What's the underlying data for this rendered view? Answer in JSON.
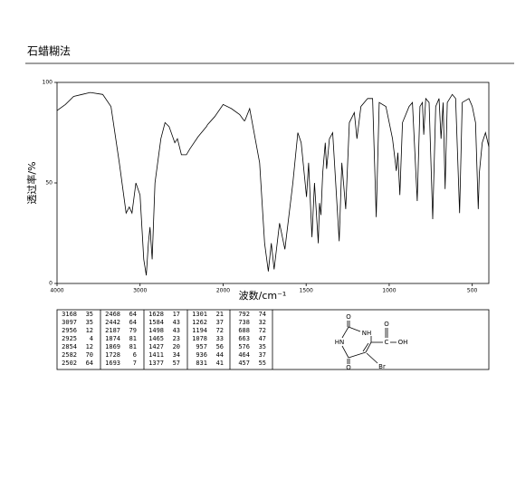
{
  "header": {
    "title": "石蜡糊法"
  },
  "chart_data": {
    "type": "line",
    "color": "#000000",
    "x_label": "波数/cm⁻¹",
    "y_label": "透过率/%",
    "xlim": [
      4000,
      400
    ],
    "x_scale_break": 2000,
    "xticks": [
      4000,
      3000,
      2000,
      1500,
      1000,
      500
    ],
    "ylim": [
      0,
      100
    ],
    "yticks": [
      0,
      50,
      100
    ],
    "x": [
      4000,
      3900,
      3800,
      3700,
      3600,
      3450,
      3350,
      3250,
      3168,
      3130,
      3097,
      3050,
      3000,
      2956,
      2925,
      2900,
      2880,
      2854,
      2820,
      2750,
      2700,
      2650,
      2582,
      2550,
      2502,
      2468,
      2442,
      2400,
      2300,
      2200,
      2187,
      2100,
      2000,
      1950,
      1900,
      1874,
      1869,
      1840,
      1780,
      1750,
      1728,
      1710,
      1693,
      1660,
      1628,
      1580,
      1550,
      1530,
      1498,
      1485,
      1465,
      1450,
      1427,
      1420,
      1411,
      1400,
      1385,
      1377,
      1360,
      1340,
      1301,
      1285,
      1262,
      1240,
      1210,
      1194,
      1170,
      1130,
      1100,
      1078,
      1060,
      1020,
      980,
      957,
      948,
      936,
      920,
      880,
      860,
      831,
      815,
      800,
      792,
      780,
      760,
      738,
      720,
      700,
      688,
      675,
      663,
      650,
      620,
      600,
      576,
      560,
      520,
      500,
      480,
      464,
      457,
      440,
      420,
      400
    ],
    "values": [
      86,
      89,
      93,
      94,
      95,
      94,
      88,
      60,
      35,
      38,
      35,
      50,
      44,
      12,
      4,
      20,
      28,
      12,
      50,
      72,
      80,
      78,
      70,
      72,
      64,
      64,
      64,
      67,
      73,
      78,
      79,
      83,
      89,
      87,
      84,
      81,
      81,
      87,
      60,
      20,
      6,
      20,
      7,
      30,
      17,
      50,
      75,
      70,
      43,
      60,
      23,
      50,
      20,
      40,
      34,
      55,
      70,
      57,
      72,
      75,
      21,
      60,
      37,
      80,
      85,
      72,
      88,
      92,
      92,
      33,
      90,
      88,
      72,
      56,
      65,
      44,
      80,
      88,
      90,
      41,
      88,
      90,
      74,
      92,
      90,
      32,
      88,
      92,
      72,
      90,
      47,
      90,
      94,
      92,
      35,
      90,
      92,
      88,
      80,
      37,
      55,
      70,
      75,
      68
    ]
  },
  "peak_table": {
    "groups": [
      [
        [
          3168,
          35
        ],
        [
          3097,
          35
        ],
        [
          2956,
          12
        ],
        [
          2925,
          4
        ],
        [
          2854,
          12
        ],
        [
          2582,
          70
        ],
        [
          2502,
          64
        ]
      ],
      [
        [
          2468,
          64
        ],
        [
          2442,
          64
        ],
        [
          2187,
          79
        ],
        [
          1874,
          81
        ],
        [
          1869,
          81
        ],
        [
          1728,
          6
        ],
        [
          1693,
          7
        ]
      ],
      [
        [
          1628,
          17
        ],
        [
          1584,
          43
        ],
        [
          1498,
          43
        ],
        [
          1465,
          23
        ],
        [
          1427,
          20
        ],
        [
          1411,
          34
        ],
        [
          1377,
          57
        ]
      ],
      [
        [
          1301,
          21
        ],
        [
          1262,
          37
        ],
        [
          1194,
          72
        ],
        [
          1078,
          33
        ],
        [
          957,
          56
        ],
        [
          936,
          44
        ],
        [
          831,
          41
        ]
      ],
      [
        [
          792,
          74
        ],
        [
          738,
          32
        ],
        [
          688,
          72
        ],
        [
          663,
          47
        ],
        [
          576,
          35
        ],
        [
          464,
          37
        ],
        [
          457,
          55
        ]
      ]
    ]
  },
  "structure": {
    "labels": [
      "O",
      "NH",
      "HN",
      "O",
      "C",
      "O",
      "OH",
      "Br"
    ]
  }
}
